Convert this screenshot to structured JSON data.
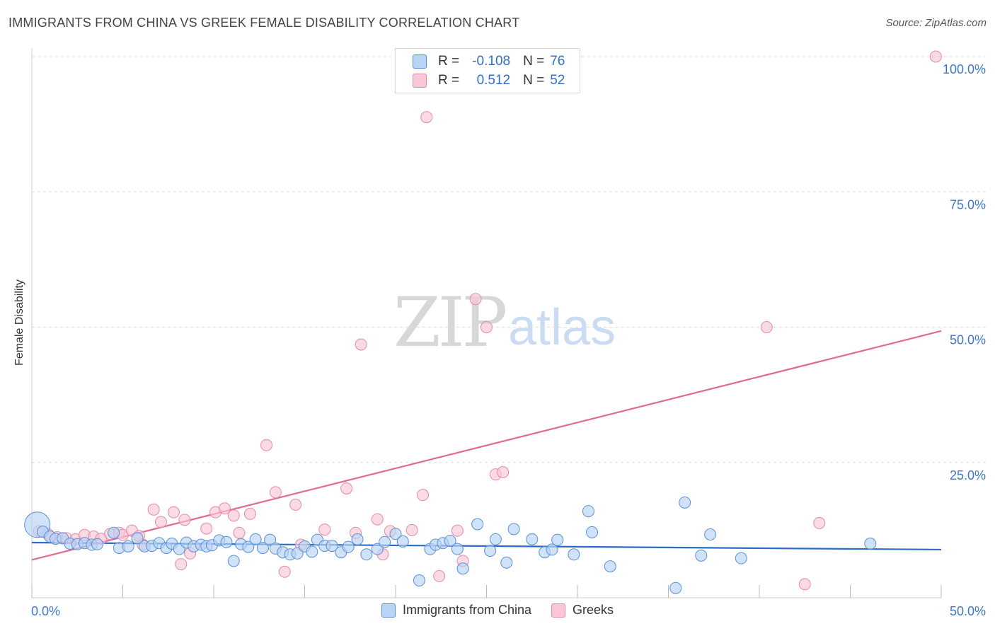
{
  "title": "IMMIGRANTS FROM CHINA VS GREEK FEMALE DISABILITY CORRELATION CHART",
  "source": "Source: ZipAtlas.com",
  "watermark": {
    "part1": "ZIP",
    "part2": "atlas"
  },
  "legend": {
    "rows": [
      {
        "r_label": "R =",
        "r_value": "-0.108",
        "n_label": "N =",
        "n_value": "76"
      },
      {
        "r_label": "R =",
        "r_value": "0.512",
        "n_label": "N =",
        "n_value": "52"
      }
    ]
  },
  "bottom_legend": [
    "Immigrants from China",
    "Greeks"
  ],
  "colors": {
    "blue_fill": "#b7d3f5",
    "blue_stroke": "#5b8fd6",
    "blue_line": "#2b6cc4",
    "pink_fill": "#f8c6d6",
    "pink_stroke": "#e58aa8",
    "pink_line": "#e06a95",
    "axis_text": "#3f78c8"
  },
  "chart_data": {
    "type": "scatter",
    "title": "IMMIGRANTS FROM CHINA VS GREEK FEMALE DISABILITY CORRELATION CHART",
    "ylabel": "Female Disability",
    "xlabel": "",
    "xlim": [
      0,
      50
    ],
    "ylim": [
      0,
      100
    ],
    "x_tick_labels": [
      "0.0%",
      "50.0%"
    ],
    "y_tick_labels": [
      "25.0%",
      "50.0%",
      "75.0%",
      "100.0%"
    ],
    "y_ticks": [
      25,
      50,
      75,
      100
    ],
    "grid": "horizontal dashed",
    "legend_position": "top-center",
    "series": [
      {
        "name": "Immigrants from China",
        "r": -0.108,
        "n": 76,
        "trend": [
          [
            0,
            10.2
          ],
          [
            50,
            8.9
          ]
        ],
        "points": [
          [
            0.3,
            13.5
          ],
          [
            0.6,
            12.2
          ],
          [
            1.0,
            11.3
          ],
          [
            1.3,
            10.9
          ],
          [
            1.7,
            11.0
          ],
          [
            2.1,
            10.0
          ],
          [
            2.5,
            9.9
          ],
          [
            2.9,
            10.1
          ],
          [
            3.3,
            9.8
          ],
          [
            3.6,
            9.9
          ],
          [
            4.5,
            12.0
          ],
          [
            4.8,
            9.2
          ],
          [
            5.3,
            9.5
          ],
          [
            5.8,
            11.0
          ],
          [
            6.2,
            9.5
          ],
          [
            6.6,
            9.6
          ],
          [
            7.0,
            10.1
          ],
          [
            7.4,
            9.2
          ],
          [
            7.7,
            10.0
          ],
          [
            8.1,
            9.0
          ],
          [
            8.5,
            10.2
          ],
          [
            8.9,
            9.5
          ],
          [
            9.3,
            9.8
          ],
          [
            9.6,
            9.5
          ],
          [
            9.9,
            9.7
          ],
          [
            10.3,
            10.6
          ],
          [
            10.7,
            10.3
          ],
          [
            11.1,
            6.8
          ],
          [
            11.5,
            9.9
          ],
          [
            11.9,
            9.4
          ],
          [
            12.3,
            10.8
          ],
          [
            12.7,
            9.2
          ],
          [
            13.1,
            10.7
          ],
          [
            13.4,
            9.1
          ],
          [
            13.8,
            8.4
          ],
          [
            14.2,
            8.0
          ],
          [
            14.6,
            8.2
          ],
          [
            15.0,
            9.5
          ],
          [
            15.4,
            8.5
          ],
          [
            15.7,
            10.7
          ],
          [
            16.1,
            9.6
          ],
          [
            16.5,
            9.6
          ],
          [
            17.0,
            8.4
          ],
          [
            17.4,
            9.4
          ],
          [
            17.9,
            10.8
          ],
          [
            18.4,
            8.0
          ],
          [
            19.0,
            9.0
          ],
          [
            19.4,
            10.3
          ],
          [
            20.0,
            11.8
          ],
          [
            20.4,
            10.4
          ],
          [
            21.3,
            3.2
          ],
          [
            21.9,
            9.0
          ],
          [
            22.2,
            9.8
          ],
          [
            22.6,
            10.1
          ],
          [
            23.0,
            10.5
          ],
          [
            23.4,
            9.0
          ],
          [
            23.7,
            5.4
          ],
          [
            24.5,
            13.6
          ],
          [
            25.2,
            8.7
          ],
          [
            25.5,
            10.8
          ],
          [
            26.1,
            6.5
          ],
          [
            26.5,
            12.7
          ],
          [
            27.5,
            10.8
          ],
          [
            28.2,
            8.4
          ],
          [
            28.6,
            8.9
          ],
          [
            28.9,
            10.7
          ],
          [
            29.8,
            8.0
          ],
          [
            30.6,
            16.0
          ],
          [
            30.8,
            12.1
          ],
          [
            31.8,
            5.8
          ],
          [
            35.4,
            1.8
          ],
          [
            35.9,
            17.6
          ],
          [
            36.8,
            7.8
          ],
          [
            37.3,
            11.7
          ],
          [
            39.0,
            7.3
          ],
          [
            46.1,
            10.0
          ]
        ]
      },
      {
        "name": "Greeks",
        "r": 0.512,
        "n": 52,
        "trend": [
          [
            0,
            7.0
          ],
          [
            50,
            49.3
          ]
        ],
        "points": [
          [
            0.4,
            12.3
          ],
          [
            0.9,
            11.7
          ],
          [
            1.4,
            11.2
          ],
          [
            1.9,
            11.0
          ],
          [
            2.4,
            10.8
          ],
          [
            2.9,
            11.6
          ],
          [
            3.4,
            11.3
          ],
          [
            3.8,
            10.9
          ],
          [
            4.3,
            11.8
          ],
          [
            4.8,
            12.0
          ],
          [
            5.0,
            11.6
          ],
          [
            5.5,
            12.4
          ],
          [
            5.9,
            11.4
          ],
          [
            6.1,
            9.8
          ],
          [
            6.7,
            16.3
          ],
          [
            7.1,
            14.0
          ],
          [
            7.8,
            15.8
          ],
          [
            8.2,
            6.2
          ],
          [
            8.4,
            14.4
          ],
          [
            8.7,
            8.2
          ],
          [
            9.6,
            12.8
          ],
          [
            10.1,
            15.8
          ],
          [
            10.6,
            16.5
          ],
          [
            11.1,
            15.2
          ],
          [
            11.4,
            12.0
          ],
          [
            12.0,
            15.5
          ],
          [
            12.9,
            28.2
          ],
          [
            13.4,
            19.5
          ],
          [
            13.9,
            4.8
          ],
          [
            14.5,
            17.2
          ],
          [
            14.8,
            9.8
          ],
          [
            16.1,
            12.6
          ],
          [
            17.3,
            20.2
          ],
          [
            17.8,
            12.0
          ],
          [
            18.1,
            46.8
          ],
          [
            19.0,
            14.5
          ],
          [
            19.3,
            8.0
          ],
          [
            19.7,
            12.3
          ],
          [
            20.9,
            12.5
          ],
          [
            21.5,
            19.0
          ],
          [
            21.7,
            88.8
          ],
          [
            22.4,
            4.0
          ],
          [
            23.4,
            12.4
          ],
          [
            23.7,
            6.8
          ],
          [
            24.4,
            55.2
          ],
          [
            25.0,
            50.0
          ],
          [
            25.5,
            22.8
          ],
          [
            25.9,
            23.2
          ],
          [
            40.4,
            50.0
          ],
          [
            42.5,
            2.5
          ],
          [
            43.3,
            13.8
          ],
          [
            49.7,
            100.0
          ]
        ]
      }
    ]
  }
}
